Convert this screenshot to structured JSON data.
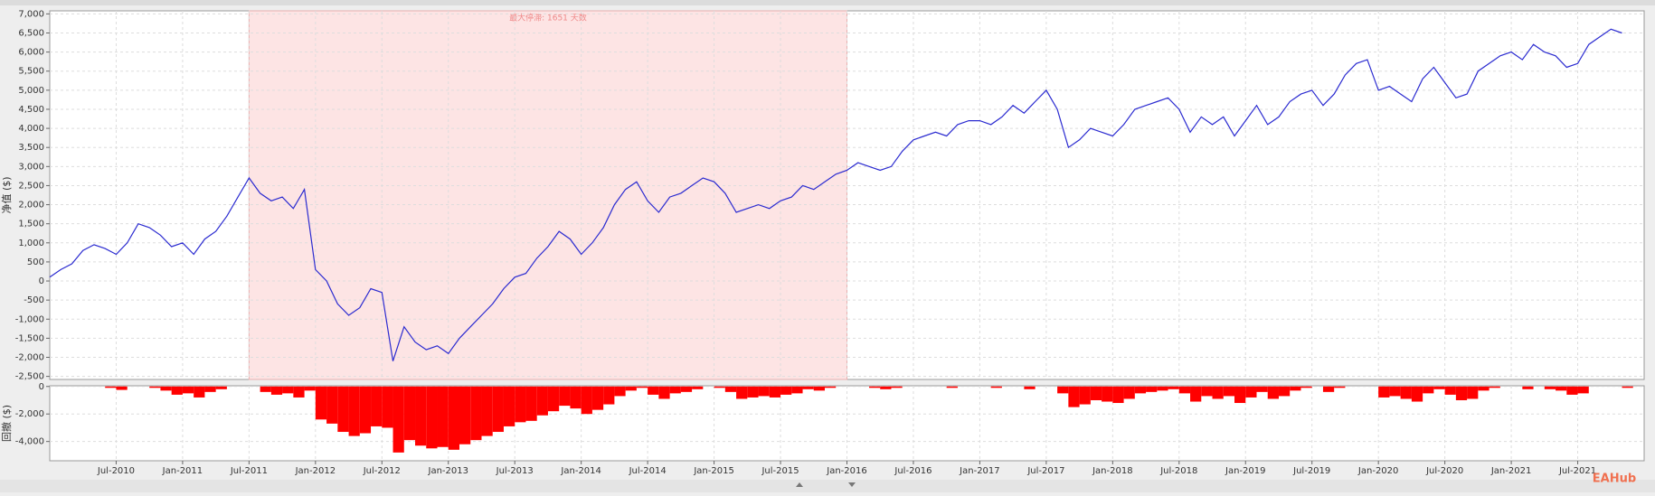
{
  "chart_data": [
    {
      "type": "line",
      "ylabel": "净值 ($)",
      "color": "#2b2bd0",
      "grid": true,
      "xlim": [
        "2010-01",
        "2022-01"
      ],
      "ylim": [
        -2580,
        7080
      ],
      "yticks": [
        {
          "value": 7000,
          "label": "7,000"
        },
        {
          "value": 6500,
          "label": "6,500"
        },
        {
          "value": 6000,
          "label": "6,000"
        },
        {
          "value": 5500,
          "label": "5,500"
        },
        {
          "value": 5000,
          "label": "5,000"
        },
        {
          "value": 4500,
          "label": "4,500"
        },
        {
          "value": 4000,
          "label": "4,000"
        },
        {
          "value": 3500,
          "label": "3,500"
        },
        {
          "value": 3000,
          "label": "3,000"
        },
        {
          "value": 2500,
          "label": "2,500"
        },
        {
          "value": 2000,
          "label": "2,000"
        },
        {
          "value": 1500,
          "label": "1,500"
        },
        {
          "value": 1000,
          "label": "1,000"
        },
        500,
        0,
        -500,
        {
          "value": -1000,
          "label": "-1,000"
        },
        {
          "value": -1500,
          "label": "-1,500"
        },
        {
          "value": -2000,
          "label": "-2,000"
        },
        {
          "value": -2500,
          "label": "-2,500"
        }
      ],
      "highlight": {
        "start": "2011-07",
        "end": "2016-01",
        "label": "最大停滞: 1651 天数",
        "color": "#fde4e4"
      },
      "x": [
        "2010-01",
        "2010-02",
        "2010-03",
        "2010-04",
        "2010-05",
        "2010-06",
        "2010-07",
        "2010-08",
        "2010-09",
        "2010-10",
        "2010-11",
        "2010-12",
        "2011-01",
        "2011-02",
        "2011-03",
        "2011-04",
        "2011-05",
        "2011-06",
        "2011-07",
        "2011-08",
        "2011-09",
        "2011-10",
        "2011-11",
        "2011-12",
        "2012-01",
        "2012-02",
        "2012-03",
        "2012-04",
        "2012-05",
        "2012-06",
        "2012-07",
        "2012-08",
        "2012-09",
        "2012-10",
        "2012-11",
        "2012-12",
        "2013-01",
        "2013-02",
        "2013-03",
        "2013-04",
        "2013-05",
        "2013-06",
        "2013-07",
        "2013-08",
        "2013-09",
        "2013-10",
        "2013-11",
        "2013-12",
        "2014-01",
        "2014-02",
        "2014-03",
        "2014-04",
        "2014-05",
        "2014-06",
        "2014-07",
        "2014-08",
        "2014-09",
        "2014-10",
        "2014-11",
        "2014-12",
        "2015-01",
        "2015-02",
        "2015-03",
        "2015-04",
        "2015-05",
        "2015-06",
        "2015-07",
        "2015-08",
        "2015-09",
        "2015-10",
        "2015-11",
        "2015-12",
        "2016-01",
        "2016-02",
        "2016-03",
        "2016-04",
        "2016-05",
        "2016-06",
        "2016-07",
        "2016-08",
        "2016-09",
        "2016-10",
        "2016-11",
        "2016-12",
        "2017-01",
        "2017-02",
        "2017-03",
        "2017-04",
        "2017-05",
        "2017-06",
        "2017-07",
        "2017-08",
        "2017-09",
        "2017-10",
        "2017-11",
        "2017-12",
        "2018-01",
        "2018-02",
        "2018-03",
        "2018-04",
        "2018-05",
        "2018-06",
        "2018-07",
        "2018-08",
        "2018-09",
        "2018-10",
        "2018-11",
        "2018-12",
        "2019-01",
        "2019-02",
        "2019-03",
        "2019-04",
        "2019-05",
        "2019-06",
        "2019-07",
        "2019-08",
        "2019-09",
        "2019-10",
        "2019-11",
        "2019-12",
        "2020-01",
        "2020-02",
        "2020-03",
        "2020-04",
        "2020-05",
        "2020-06",
        "2020-07",
        "2020-08",
        "2020-09",
        "2020-10",
        "2020-11",
        "2020-12",
        "2021-01",
        "2021-02",
        "2021-03",
        "2021-04",
        "2021-05",
        "2021-06",
        "2021-07",
        "2021-08",
        "2021-09",
        "2021-10",
        "2021-11"
      ],
      "values": [
        100,
        300,
        450,
        800,
        950,
        850,
        700,
        1000,
        1500,
        1400,
        1200,
        900,
        1000,
        700,
        1100,
        1300,
        1700,
        2200,
        2700,
        2300,
        2100,
        2200,
        1900,
        2400,
        300,
        0,
        -600,
        -900,
        -700,
        -200,
        -300,
        -2100,
        -1200,
        -1600,
        -1800,
        -1700,
        -1900,
        -1500,
        -1200,
        -900,
        -600,
        -200,
        100,
        200,
        600,
        900,
        1300,
        1100,
        700,
        1000,
        1400,
        2000,
        2400,
        2600,
        2100,
        1800,
        2200,
        2300,
        2500,
        2700,
        2600,
        2300,
        1800,
        1900,
        2000,
        1900,
        2100,
        2200,
        2500,
        2400,
        2600,
        2800,
        2900,
        3100,
        3000,
        2900,
        3000,
        3400,
        3700,
        3800,
        3900,
        3800,
        4100,
        4200,
        4200,
        4100,
        4300,
        4600,
        4400,
        4700,
        5000,
        4500,
        3500,
        3700,
        4000,
        3900,
        3800,
        4100,
        4500,
        4600,
        4700,
        4800,
        4500,
        3900,
        4300,
        4100,
        4300,
        3800,
        4200,
        4600,
        4100,
        4300,
        4700,
        4900,
        5000,
        4600,
        4900,
        5400,
        5700,
        5800,
        5000,
        5100,
        4900,
        4700,
        5300,
        5600,
        5200,
        4800,
        4900,
        5500,
        5700,
        5900,
        6000,
        5800,
        6200,
        6000,
        5900,
        5600,
        5700,
        6200,
        6400,
        6600,
        6500
      ]
    },
    {
      "type": "bar",
      "ylabel": "回撤 ($)",
      "color": "#ff0000",
      "grid": true,
      "xlim": [
        "2010-01",
        "2022-01"
      ],
      "ylim": [
        -5400,
        50
      ],
      "yticks": [
        0,
        {
          "value": -2000,
          "label": "-2,000"
        },
        {
          "value": -4000,
          "label": "-4,000"
        }
      ],
      "xticks": [
        {
          "value": "2010-07",
          "label": "Jul-2010"
        },
        {
          "value": "2011-01",
          "label": "Jan-2011"
        },
        {
          "value": "2011-07",
          "label": "Jul-2011"
        },
        {
          "value": "2012-01",
          "label": "Jan-2012"
        },
        {
          "value": "2012-07",
          "label": "Jul-2012"
        },
        {
          "value": "2013-01",
          "label": "Jan-2013"
        },
        {
          "value": "2013-07",
          "label": "Jul-2013"
        },
        {
          "value": "2014-01",
          "label": "Jan-2014"
        },
        {
          "value": "2014-07",
          "label": "Jul-2014"
        },
        {
          "value": "2015-01",
          "label": "Jan-2015"
        },
        {
          "value": "2015-07",
          "label": "Jul-2015"
        },
        {
          "value": "2016-01",
          "label": "Jan-2016"
        },
        {
          "value": "2016-07",
          "label": "Jul-2016"
        },
        {
          "value": "2017-01",
          "label": "Jan-2017"
        },
        {
          "value": "2017-07",
          "label": "Jul-2017"
        },
        {
          "value": "2018-01",
          "label": "Jan-2018"
        },
        {
          "value": "2018-07",
          "label": "Jul-2018"
        },
        {
          "value": "2019-01",
          "label": "Jan-2019"
        },
        {
          "value": "2019-07",
          "label": "Jul-2019"
        },
        {
          "value": "2020-01",
          "label": "Jan-2020"
        },
        {
          "value": "2020-07",
          "label": "Jul-2020"
        },
        {
          "value": "2021-01",
          "label": "Jan-2021"
        },
        {
          "value": "2021-07",
          "label": "Jul-2021"
        }
      ],
      "x": [
        "2010-01",
        "2010-02",
        "2010-03",
        "2010-04",
        "2010-05",
        "2010-06",
        "2010-07",
        "2010-08",
        "2010-09",
        "2010-10",
        "2010-11",
        "2010-12",
        "2011-01",
        "2011-02",
        "2011-03",
        "2011-04",
        "2011-05",
        "2011-06",
        "2011-07",
        "2011-08",
        "2011-09",
        "2011-10",
        "2011-11",
        "2011-12",
        "2012-01",
        "2012-02",
        "2012-03",
        "2012-04",
        "2012-05",
        "2012-06",
        "2012-07",
        "2012-08",
        "2012-09",
        "2012-10",
        "2012-11",
        "2012-12",
        "2013-01",
        "2013-02",
        "2013-03",
        "2013-04",
        "2013-05",
        "2013-06",
        "2013-07",
        "2013-08",
        "2013-09",
        "2013-10",
        "2013-11",
        "2013-12",
        "2014-01",
        "2014-02",
        "2014-03",
        "2014-04",
        "2014-05",
        "2014-06",
        "2014-07",
        "2014-08",
        "2014-09",
        "2014-10",
        "2014-11",
        "2014-12",
        "2015-01",
        "2015-02",
        "2015-03",
        "2015-04",
        "2015-05",
        "2015-06",
        "2015-07",
        "2015-08",
        "2015-09",
        "2015-10",
        "2015-11",
        "2015-12",
        "2016-01",
        "2016-02",
        "2016-03",
        "2016-04",
        "2016-05",
        "2016-06",
        "2016-07",
        "2016-08",
        "2016-09",
        "2016-10",
        "2016-11",
        "2016-12",
        "2017-01",
        "2017-02",
        "2017-03",
        "2017-04",
        "2017-05",
        "2017-06",
        "2017-07",
        "2017-08",
        "2017-09",
        "2017-10",
        "2017-11",
        "2017-12",
        "2018-01",
        "2018-02",
        "2018-03",
        "2018-04",
        "2018-05",
        "2018-06",
        "2018-07",
        "2018-08",
        "2018-09",
        "2018-10",
        "2018-11",
        "2018-12",
        "2019-01",
        "2019-02",
        "2019-03",
        "2019-04",
        "2019-05",
        "2019-06",
        "2019-07",
        "2019-08",
        "2019-09",
        "2019-10",
        "2019-11",
        "2019-12",
        "2020-01",
        "2020-02",
        "2020-03",
        "2020-04",
        "2020-05",
        "2020-06",
        "2020-07",
        "2020-08",
        "2020-09",
        "2020-10",
        "2020-11",
        "2020-12",
        "2021-01",
        "2021-02",
        "2021-03",
        "2021-04",
        "2021-05",
        "2021-06",
        "2021-07",
        "2021-08",
        "2021-09",
        "2021-10",
        "2021-11"
      ],
      "values": [
        0,
        0,
        0,
        0,
        0,
        -100,
        -250,
        0,
        0,
        -100,
        -300,
        -600,
        -500,
        -800,
        -400,
        -200,
        0,
        0,
        0,
        -400,
        -600,
        -500,
        -800,
        -300,
        -2400,
        -2700,
        -3300,
        -3600,
        -3400,
        -2900,
        -3000,
        -4800,
        -3900,
        -4300,
        -4500,
        -4400,
        -4600,
        -4200,
        -3900,
        -3600,
        -3300,
        -2900,
        -2600,
        -2500,
        -2100,
        -1800,
        -1400,
        -1600,
        -2000,
        -1700,
        -1300,
        -700,
        -300,
        -100,
        -600,
        -900,
        -500,
        -400,
        -200,
        0,
        -100,
        -400,
        -900,
        -800,
        -700,
        -800,
        -600,
        -500,
        -200,
        -300,
        -100,
        0,
        0,
        0,
        -100,
        -200,
        -100,
        0,
        0,
        0,
        0,
        -100,
        0,
        0,
        0,
        -100,
        0,
        0,
        -200,
        0,
        0,
        -500,
        -1500,
        -1300,
        -1000,
        -1100,
        -1200,
        -900,
        -500,
        -400,
        -300,
        -200,
        -500,
        -1100,
        -700,
        -900,
        -700,
        -1200,
        -800,
        -400,
        -900,
        -700,
        -300,
        -100,
        0,
        -400,
        -100,
        0,
        0,
        0,
        -800,
        -700,
        -900,
        -1100,
        -500,
        -200,
        -600,
        -1000,
        -900,
        -300,
        -100,
        0,
        0,
        -200,
        0,
        -200,
        -300,
        -600,
        -500,
        0,
        0,
        0,
        -100
      ]
    }
  ],
  "watermark": "EAHub"
}
